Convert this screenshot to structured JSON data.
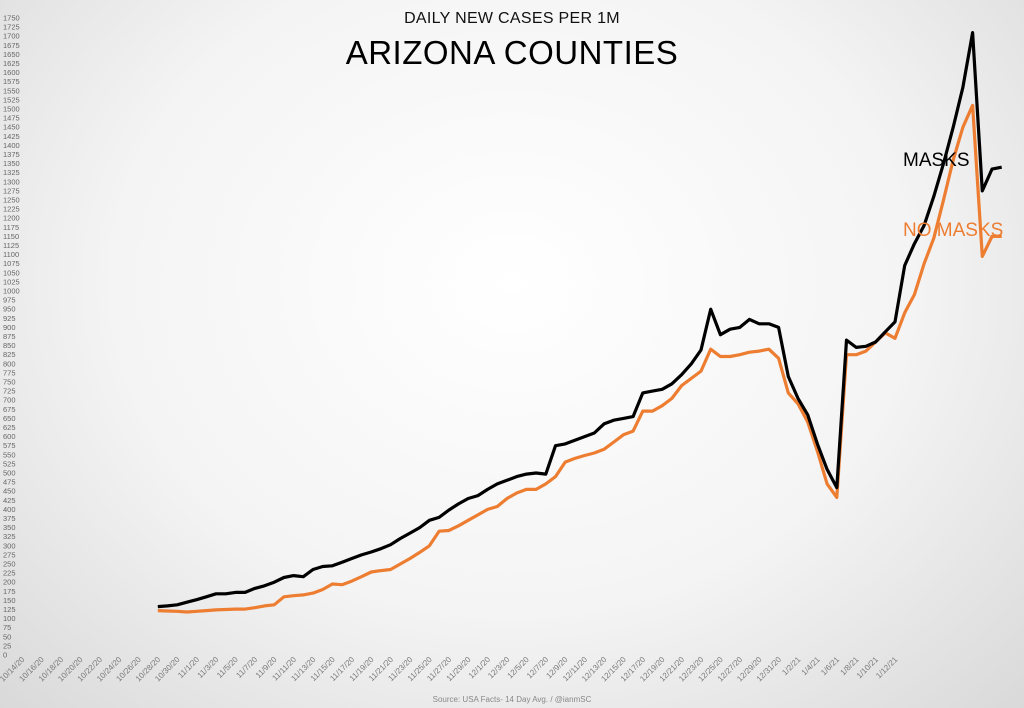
{
  "chart_data": {
    "type": "line",
    "title": "ARIZONA COUNTIES",
    "subtitle": "DAILY NEW CASES PER 1M",
    "source": "Source: USA Facts- 14 Day Avg. / @ianmSC",
    "ylim": [
      0,
      1750
    ],
    "ytick_step": 25,
    "grid": false,
    "x_tick_labels": [
      "10/14/20",
      "10/16/20",
      "10/18/20",
      "10/20/20",
      "10/22/20",
      "10/24/20",
      "10/26/20",
      "10/28/20",
      "10/30/20",
      "11/1/20",
      "11/3/20",
      "11/5/20",
      "11/7/20",
      "11/9/20",
      "11/11/20",
      "11/13/20",
      "11/15/20",
      "11/17/20",
      "11/19/20",
      "11/21/20",
      "11/23/20",
      "11/25/20",
      "11/27/20",
      "11/29/20",
      "12/1/20",
      "12/3/20",
      "12/5/20",
      "12/7/20",
      "12/9/20",
      "12/11/20",
      "12/13/20",
      "12/15/20",
      "12/17/20",
      "12/19/20",
      "12/21/20",
      "12/23/20",
      "12/25/20",
      "12/27/20",
      "12/29/20",
      "12/31/20",
      "1/2/21",
      "1/4/21",
      "1/6/21",
      "1/8/21",
      "1/10/21",
      "1/12/21"
    ],
    "series": [
      {
        "name": "MASKS",
        "color": "#000000",
        "start_index": 14,
        "values": [
          133,
          135,
          138,
          145,
          152,
          160,
          168,
          168,
          172,
          172,
          183,
          190,
          200,
          213,
          218,
          215,
          235,
          243,
          245,
          255,
          265,
          275,
          283,
          292,
          303,
          320,
          335,
          350,
          370,
          378,
          398,
          415,
          430,
          438,
          455,
          470,
          480,
          490,
          497,
          500,
          497,
          575,
          580,
          590,
          600,
          610,
          635,
          645,
          650,
          655,
          720,
          725,
          730,
          745,
          770,
          800,
          838,
          950,
          880,
          895,
          900,
          922,
          910,
          910,
          900,
          765,
          705,
          660,
          580,
          510,
          460,
          865,
          845,
          848,
          860,
          888,
          915,
          1070,
          1130,
          1180,
          1260,
          1350,
          1450,
          1560,
          1710,
          1275,
          1335,
          1340
        ]
      },
      {
        "name": "NO MASKS",
        "color": "#ed7d31",
        "start_index": 14,
        "values": [
          122,
          121,
          120,
          118,
          120,
          122,
          124,
          125,
          126,
          126,
          130,
          135,
          138,
          160,
          163,
          165,
          170,
          180,
          195,
          193,
          203,
          215,
          228,
          232,
          235,
          250,
          265,
          282,
          300,
          340,
          342,
          355,
          370,
          385,
          400,
          408,
          430,
          445,
          455,
          455,
          470,
          490,
          530,
          540,
          548,
          555,
          565,
          585,
          605,
          615,
          670,
          670,
          685,
          705,
          740,
          760,
          780,
          840,
          820,
          820,
          825,
          832,
          835,
          840,
          815,
          720,
          690,
          640,
          560,
          470,
          433,
          825,
          825,
          835,
          860,
          885,
          870,
          940,
          990,
          1075,
          1145,
          1250,
          1360,
          1450,
          1510,
          1095,
          1150,
          1150
        ]
      }
    ]
  }
}
